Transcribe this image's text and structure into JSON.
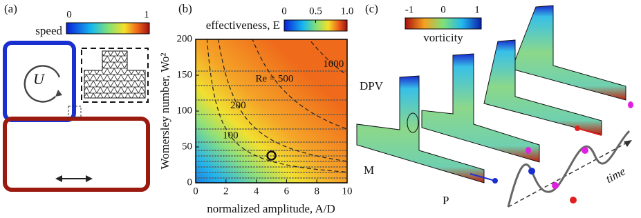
{
  "panel_a": {
    "label": "(a)",
    "colorbar_title": "speed",
    "colorbar_ticks": [
      0,
      1
    ],
    "symbol": "U"
  },
  "chart_data": {
    "type": "heatmap",
    "label": "(b)",
    "colorbar_title": "effectiveness, E",
    "colorbar_ticks": [
      0,
      0.5,
      {
        "value": 1,
        "label": "1.0"
      }
    ],
    "xlabel": "normalized amplitude, A/D",
    "ylabel": "Womersley number, Wo²",
    "xlim": [
      0,
      10
    ],
    "xticks": [
      0,
      2,
      4,
      6,
      8,
      10
    ],
    "ylim": [
      0,
      200
    ],
    "yticks": [
      0,
      50,
      100,
      150,
      200
    ],
    "contours": [
      100,
      200,
      {
        "value": 500,
        "label": "Re = 500"
      },
      1000
    ],
    "highlight": {
      "x": 5,
      "y": 38
    }
  },
  "panel_c": {
    "label": "(c)",
    "colorbar_title": "vorticity",
    "colorbar_ticks": [
      -1,
      0,
      1
    ],
    "annotations": [
      "DPV",
      "M",
      "P"
    ],
    "time_label": "time"
  }
}
